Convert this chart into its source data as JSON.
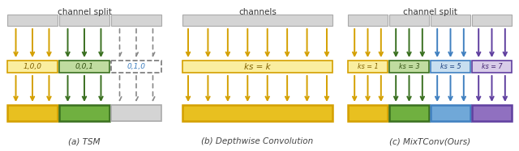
{
  "bg_color": "#ffffff",
  "gray_box_color": "#d4d4d4",
  "yellow_color": "#d4a000",
  "yellow_fill": "#faeea0",
  "yellow_bright": "#e8c020",
  "green_dark_color": "#3a7020",
  "green_fill": "#c0dca0",
  "green_bright": "#70b040",
  "blue_color": "#4080c0",
  "blue_fill": "#c8dff0",
  "blue_bright": "#70a8d8",
  "purple_color": "#6040a0",
  "purple_fill": "#d8cce8",
  "purple_bright": "#9070c0",
  "gray_arrow_color": "#888888",
  "title_a": "channel split",
  "title_b": "channels",
  "title_c": "channel split",
  "caption_a": "(a) TSM",
  "caption_b": "(b) Depthwise Convolution",
  "caption_c": "(c) MixTConv(Ours)",
  "label_a1": "1,0,0",
  "label_a2": "0,0,1",
  "label_a3": "0,1,0",
  "label_b": "ks = k",
  "label_c1": "ks = 1",
  "label_c2": "ks = 3",
  "label_c3": "ks = 5",
  "label_c4": "ks = 7"
}
